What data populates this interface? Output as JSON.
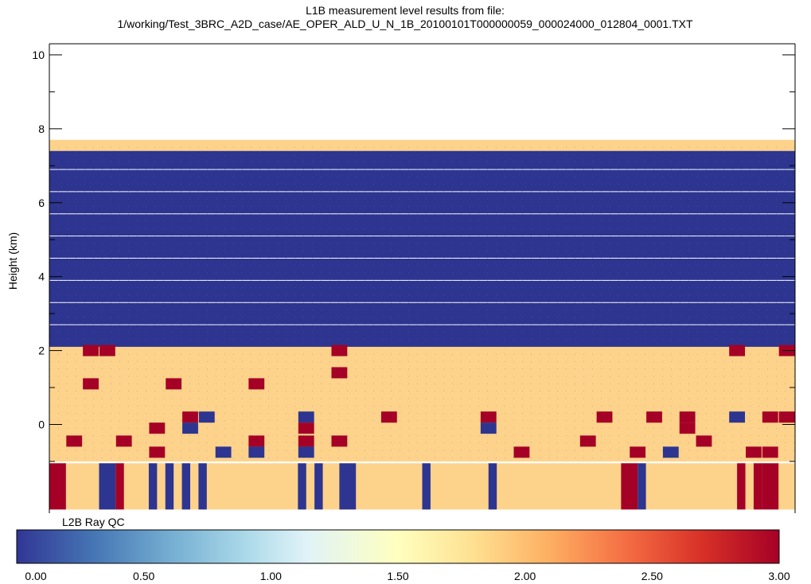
{
  "chart_data": {
    "type": "heatmap",
    "title_line1": "L1B measurement level results from file:",
    "title_line2": "1/working/Test_3BRC_A2D_case/AE_OPER_ALD_U_N_1B_20100101T000000059_000024000_012804_0001.TXT",
    "ylabel": "Height (km)",
    "ylim": [
      -2.4,
      10.3
    ],
    "yticks": [
      "10",
      "8",
      "6",
      "4",
      "2",
      "0"
    ],
    "ytick_values": [
      10,
      8,
      6,
      4,
      2,
      0
    ],
    "n_columns": 45,
    "layers": [
      {
        "from": 7.4,
        "to": 7.7,
        "value": 2.0
      },
      {
        "from": 2.1,
        "to": 7.4,
        "value": 0.0
      },
      {
        "from": -1.0,
        "to": 2.1,
        "value": 2.0
      }
    ],
    "bands_km": [
      2.0,
      1.0,
      0.0,
      -0.5,
      -1.0,
      0.5,
      1.5
    ],
    "cells": [
      {
        "col": 3,
        "y": 2.0,
        "value": 3.0
      },
      {
        "col": 4,
        "y": 2.0,
        "value": 3.0
      },
      {
        "col": 18,
        "y": 2.0,
        "value": 3.0
      },
      {
        "col": 42,
        "y": 2.0,
        "value": 3.0
      },
      {
        "col": 45,
        "y": 2.0,
        "value": 3.0
      },
      {
        "col": 18,
        "y": 1.4,
        "value": 3.0
      },
      {
        "col": 3,
        "y": 1.1,
        "value": 3.0
      },
      {
        "col": 8,
        "y": 1.1,
        "value": 3.0
      },
      {
        "col": 13,
        "y": 1.1,
        "value": 3.0
      },
      {
        "col": 9,
        "y": 0.2,
        "value": 3.0
      },
      {
        "col": 10,
        "y": 0.2,
        "value": 0.0
      },
      {
        "col": 16,
        "y": 0.2,
        "value": 0.0
      },
      {
        "col": 21,
        "y": 0.2,
        "value": 3.0
      },
      {
        "col": 27,
        "y": 0.2,
        "value": 3.0
      },
      {
        "col": 34,
        "y": 0.2,
        "value": 3.0
      },
      {
        "col": 37,
        "y": 0.2,
        "value": 3.0
      },
      {
        "col": 39,
        "y": 0.2,
        "value": 3.0
      },
      {
        "col": 42,
        "y": 0.2,
        "value": 0.0
      },
      {
        "col": 44,
        "y": 0.2,
        "value": 3.0
      },
      {
        "col": 45,
        "y": 0.2,
        "value": 3.0
      },
      {
        "col": 7,
        "y": -0.1,
        "value": 3.0
      },
      {
        "col": 9,
        "y": -0.1,
        "value": 0.0
      },
      {
        "col": 16,
        "y": -0.1,
        "value": 3.0
      },
      {
        "col": 27,
        "y": -0.1,
        "value": 0.0
      },
      {
        "col": 39,
        "y": -0.1,
        "value": 3.0
      },
      {
        "col": 2,
        "y": -0.45,
        "value": 3.0
      },
      {
        "col": 5,
        "y": -0.45,
        "value": 3.0
      },
      {
        "col": 13,
        "y": -0.45,
        "value": 3.0
      },
      {
        "col": 16,
        "y": -0.45,
        "value": 3.0
      },
      {
        "col": 18,
        "y": -0.45,
        "value": 3.0
      },
      {
        "col": 33,
        "y": -0.45,
        "value": 3.0
      },
      {
        "col": 40,
        "y": -0.45,
        "value": 3.0
      },
      {
        "col": 7,
        "y": -0.75,
        "value": 3.0
      },
      {
        "col": 11,
        "y": -0.75,
        "value": 0.0
      },
      {
        "col": 13,
        "y": -0.75,
        "value": 0.0
      },
      {
        "col": 16,
        "y": -0.75,
        "value": 0.0
      },
      {
        "col": 29,
        "y": -0.75,
        "value": 3.0
      },
      {
        "col": 36,
        "y": -0.75,
        "value": 3.0
      },
      {
        "col": 38,
        "y": -0.75,
        "value": 0.0
      },
      {
        "col": 43,
        "y": -0.75,
        "value": 3.0
      },
      {
        "col": 44,
        "y": -0.75,
        "value": 3.0
      }
    ],
    "ray_qc": {
      "label": "L2B Ray QC",
      "from": -2.3,
      "to": -1.05,
      "default_value": 2.0,
      "strips": [
        {
          "from": 0.0,
          "to": 1.0,
          "value": 3.0
        },
        {
          "from": 3.0,
          "to": 4.0,
          "value": 0.0
        },
        {
          "from": 4.0,
          "to": 4.5,
          "value": 3.0
        },
        {
          "from": 6.0,
          "to": 6.5,
          "value": 0.0
        },
        {
          "from": 7.0,
          "to": 7.5,
          "value": 0.0
        },
        {
          "from": 8.0,
          "to": 8.5,
          "value": 0.0
        },
        {
          "from": 9.0,
          "to": 9.5,
          "value": 0.0
        },
        {
          "from": 15.0,
          "to": 15.5,
          "value": 0.0
        },
        {
          "from": 16.0,
          "to": 16.5,
          "value": 0.0
        },
        {
          "from": 17.5,
          "to": 18.5,
          "value": 0.0
        },
        {
          "from": 22.5,
          "to": 23.0,
          "value": 0.0
        },
        {
          "from": 26.5,
          "to": 27.0,
          "value": 0.0
        },
        {
          "from": 34.5,
          "to": 35.5,
          "value": 3.0
        },
        {
          "from": 35.5,
          "to": 36.0,
          "value": 0.0
        },
        {
          "from": 41.5,
          "to": 42.0,
          "value": 3.0
        },
        {
          "from": 42.5,
          "to": 43.0,
          "value": 3.0
        },
        {
          "from": 43.0,
          "to": 44.0,
          "value": 3.0
        }
      ]
    },
    "colorbar": {
      "min": 0.0,
      "max": 3.0,
      "tick_labels": [
        "0.00",
        "0.50",
        "1.00",
        "1.50",
        "2.00",
        "2.50",
        "3.00"
      ],
      "tick_values": [
        0.0,
        0.5,
        1.0,
        1.5,
        2.0,
        2.5,
        3.0
      ]
    },
    "colors": {
      "blue": "#2d3590",
      "orange": "#fdd28a",
      "red": "#a50026",
      "gridline": "#6f6f9a"
    }
  }
}
